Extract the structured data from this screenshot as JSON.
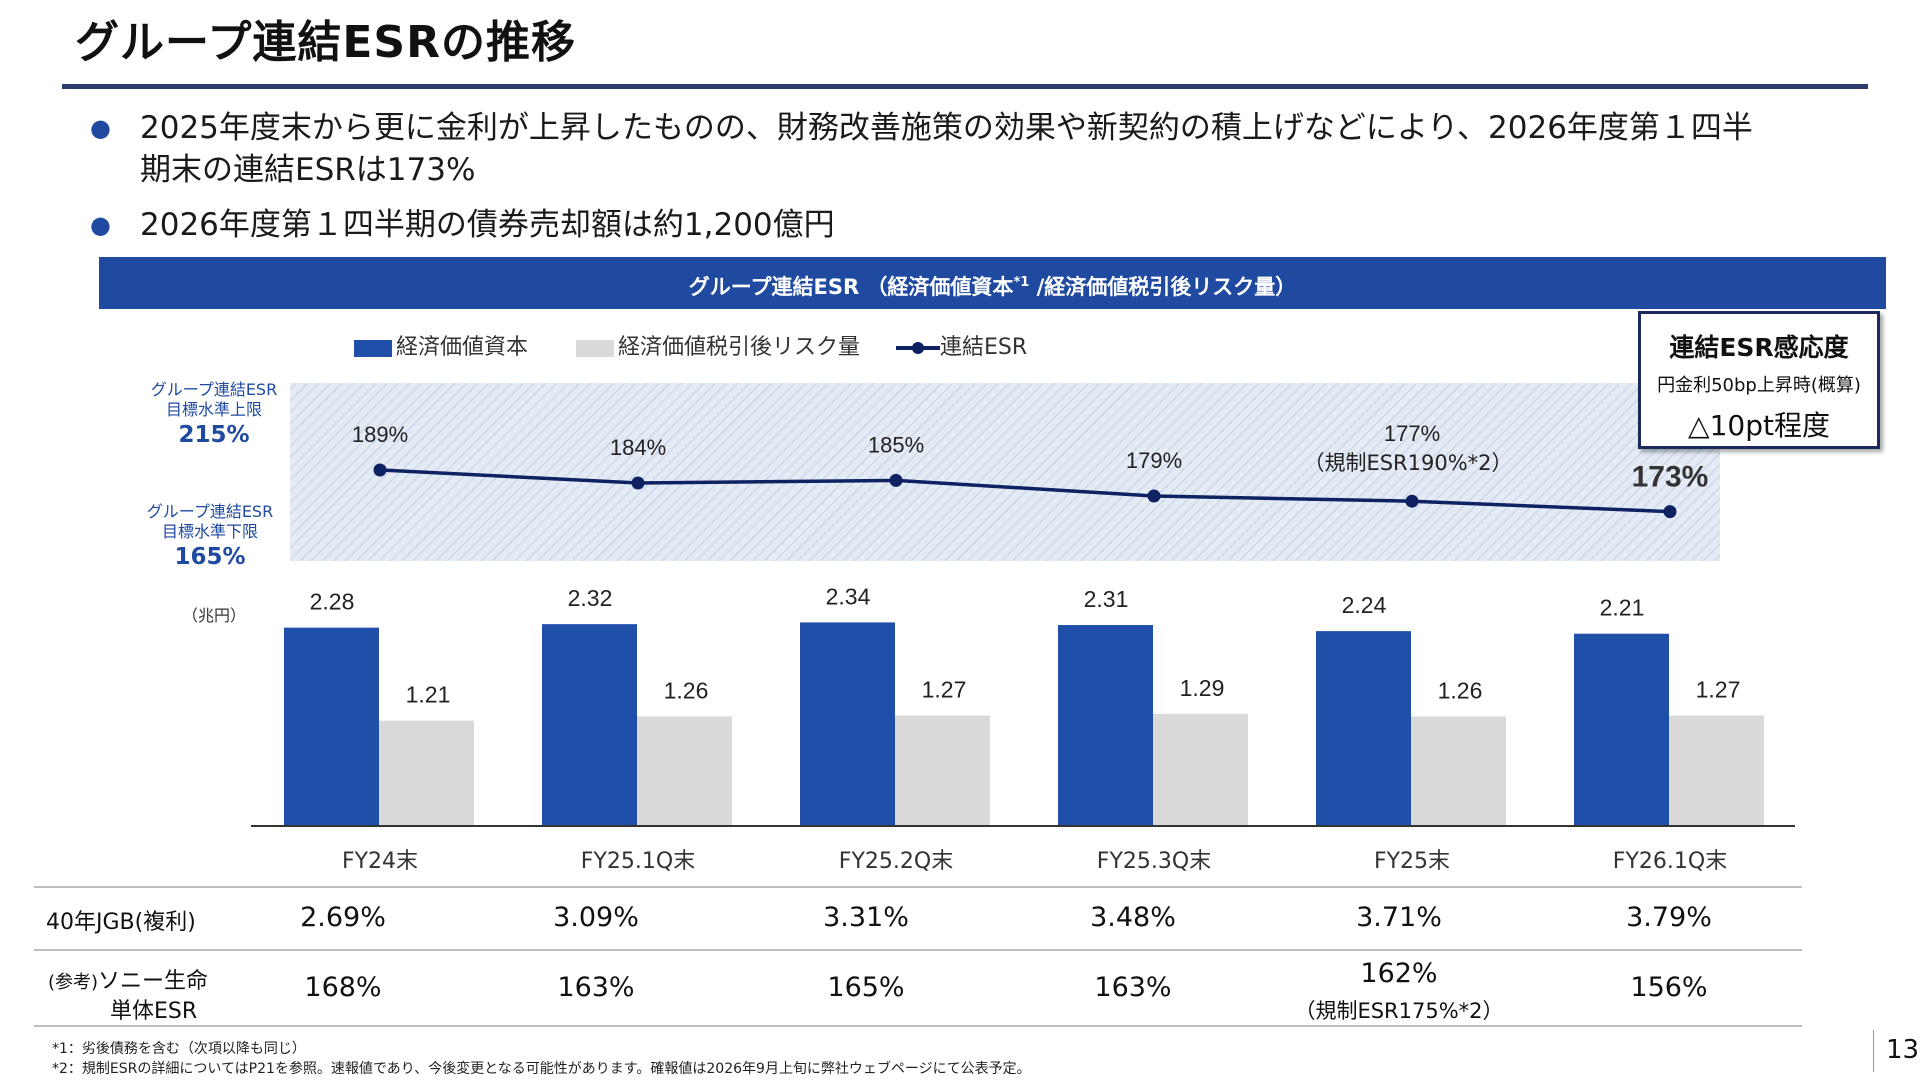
{
  "page": {
    "title": "グループ連結ESRの推移",
    "bullets": [
      "2025年度末から更に金利が上昇したものの、財務改善施策の効果や新契約の積上げなどにより、2026年度第１四半期末の連結ESRは173%",
      "2026年度第１四半期の債券売却額は約1,200億円"
    ],
    "bullet_line1": "2025年度末から更に金利が上昇したものの、財務改善施策の効果や新契約の積上げなどにより、2026年度第１四半",
    "bullet_line2": "期末の連結ESRは173%",
    "page_number": "13",
    "footnotes": [
      "*1：劣後債務を含む（次項以降も同じ）",
      "*2：規制ESRの詳細についてはP21を参照。速報値であり、今後変更となる可能性があります。確報値は2026年9月上旬に弊社ウェブページにて公表予定。"
    ]
  },
  "chart_header": {
    "text_before_sup": "グループ連結ESR （経済価値資本",
    "sup": "*1",
    "text_after_sup": " /経済価値税引後リスク量）"
  },
  "legend": {
    "capital": "経済価値資本",
    "risk": "経済価値税引後リスク量",
    "esr": "連結ESR"
  },
  "target_band": {
    "upper_label_1": "グループ連結ESR",
    "upper_label_2": "目標水準上限",
    "upper_value": "215%",
    "lower_label_1": "グループ連結ESR",
    "lower_label_2": "目標水準下限",
    "lower_value": "165%"
  },
  "unit_label": "（兆円）",
  "sensitivity_box": {
    "title": "連結ESR感応度",
    "subtitle": "円金利50bp上昇時(概算)",
    "value": "△10pt程度"
  },
  "colors": {
    "capital_bar": "#1f4fa8",
    "risk_bar": "#d9d9d9",
    "esr_line": "#0d2163",
    "banner": "#1f4aa0",
    "target_band": "#dfe8f3"
  },
  "chart_data": {
    "type": "bar",
    "categories": [
      "FY24末",
      "FY25.1Q末",
      "FY25.2Q末",
      "FY25.3Q末",
      "FY25末",
      "FY26.1Q末"
    ],
    "series": [
      {
        "name": "経済価値資本",
        "values": [
          2.28,
          2.32,
          2.34,
          2.31,
          2.24,
          2.21
        ],
        "labels": [
          "2.28",
          "2.32",
          "2.34",
          "2.31",
          "2.24",
          "2.21"
        ]
      },
      {
        "name": "経済価値税引後リスク量",
        "values": [
          1.21,
          1.26,
          1.27,
          1.29,
          1.26,
          1.27
        ],
        "labels": [
          "1.21",
          "1.26",
          "1.27",
          "1.29",
          "1.26",
          "1.27"
        ]
      }
    ],
    "bar_unit": "兆円",
    "line_series": {
      "name": "連結ESR",
      "values": [
        189,
        184,
        185,
        179,
        177,
        173
      ],
      "labels": [
        "189%",
        "184%",
        "185%",
        "179%",
        "177%",
        "173%"
      ],
      "notes": [
        "",
        "",
        "",
        "",
        "（規制ESR190%*2）",
        ""
      ]
    },
    "target_range": [
      165,
      215
    ]
  },
  "table": {
    "rows": [
      {
        "label": "40年JGB(複利)",
        "values": [
          "2.69%",
          "3.09%",
          "3.31%",
          "3.48%",
          "3.71%",
          "3.79%"
        ]
      },
      {
        "label_small": "(参考)",
        "label": "ソニー生命",
        "label_2": "単体ESR",
        "values": [
          "168%",
          "163%",
          "165%",
          "163%",
          "162%",
          "156%"
        ],
        "note_col": 4,
        "note": "（規制ESR175%*2）"
      }
    ]
  }
}
